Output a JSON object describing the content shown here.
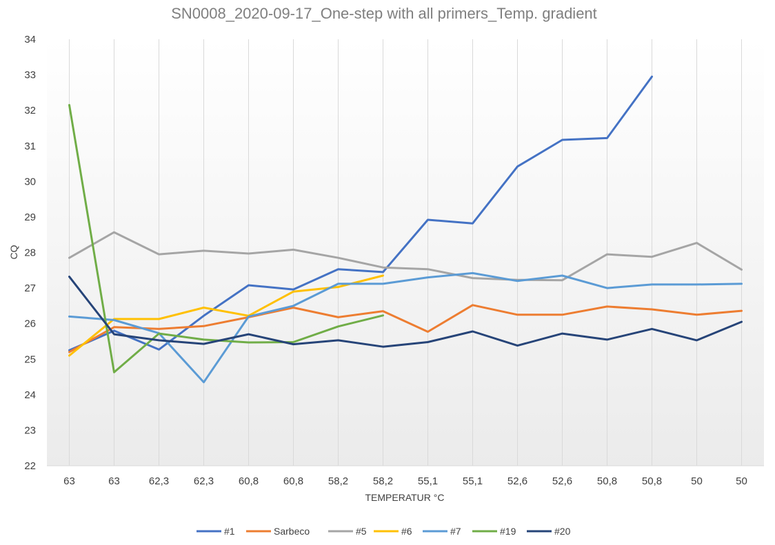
{
  "chart_data": {
    "type": "line",
    "title": "SN0008_2020-09-17_One-step with all primers_Temp. gradient",
    "xlabel": "TEMPERATUR °C",
    "ylabel": "CQ",
    "ylim": [
      22,
      34
    ],
    "yticks": [
      "22",
      "23",
      "24",
      "25",
      "26",
      "27",
      "28",
      "29",
      "30",
      "31",
      "32",
      "33",
      "34"
    ],
    "categories": [
      "63",
      "63",
      "62,3",
      "62,3",
      "60,8",
      "60,8",
      "58,2",
      "58,2",
      "55,1",
      "55,1",
      "52,6",
      "52,6",
      "50,8",
      "50,8",
      "50",
      "50"
    ],
    "grid": "vertical",
    "legend_position": "bottom",
    "series": [
      {
        "name": "#1",
        "color": "#4472c4",
        "values": [
          25.25,
          25.8,
          25.27,
          26.22,
          27.08,
          26.96,
          27.53,
          27.45,
          28.92,
          28.82,
          30.42,
          31.17,
          31.22,
          32.95,
          null,
          null
        ]
      },
      {
        "name": "Sarbeco",
        "color": "#ed7d31",
        "values": [
          25.2,
          25.9,
          25.85,
          25.93,
          26.18,
          26.45,
          26.18,
          26.35,
          25.77,
          26.52,
          26.25,
          26.25,
          26.48,
          26.4,
          26.25,
          26.36
        ]
      },
      {
        "name": "#5",
        "color": "#a5a5a5",
        "values": [
          27.85,
          28.57,
          27.95,
          28.05,
          27.97,
          28.08,
          27.85,
          27.58,
          27.53,
          27.28,
          27.23,
          27.22,
          27.95,
          27.88,
          28.27,
          27.52
        ]
      },
      {
        "name": "#6",
        "color": "#ffc000",
        "values": [
          25.1,
          26.13,
          26.13,
          26.45,
          26.22,
          26.9,
          27.03,
          27.35,
          null,
          null,
          null,
          null,
          null,
          null,
          null,
          null
        ]
      },
      {
        "name": "#7",
        "color": "#5b9bd5",
        "values": [
          26.2,
          26.1,
          25.73,
          24.35,
          26.2,
          26.5,
          27.12,
          27.12,
          27.3,
          27.42,
          27.2,
          27.35,
          27.0,
          27.1,
          27.1,
          27.12
        ]
      },
      {
        "name": "#19",
        "color": "#70ad47",
        "values": [
          32.15,
          24.63,
          25.72,
          25.55,
          25.47,
          25.48,
          25.92,
          26.23,
          null,
          null,
          null,
          null,
          null,
          null,
          null,
          null
        ]
      },
      {
        "name": "#20",
        "color": "#264478",
        "values": [
          27.32,
          25.7,
          25.53,
          25.43,
          25.7,
          25.42,
          25.53,
          25.35,
          25.48,
          25.78,
          25.38,
          25.72,
          25.55,
          25.85,
          25.53,
          26.05
        ]
      }
    ]
  }
}
